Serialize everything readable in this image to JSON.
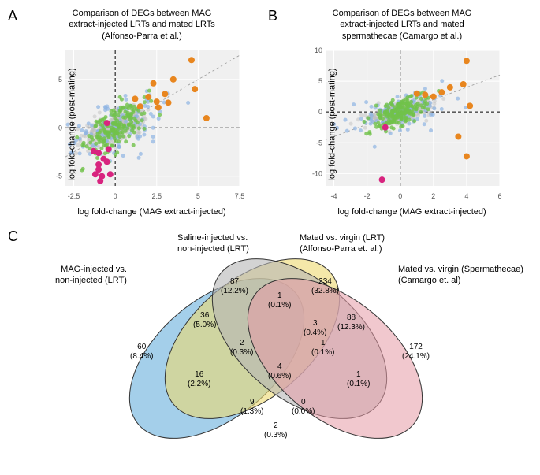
{
  "panelA": {
    "label": "A",
    "title_line1": "Comparison of DEGs between MAG",
    "title_line2": "extract-injected LRTs and mated LRTs",
    "title_line3": "(Alfonso-Parra et al.)",
    "xlabel": "log fold-change (MAG extract-injected)",
    "ylabel": "log fold-change (post-mating)",
    "xlim": [
      -3,
      7.5
    ],
    "xtick_step": 2.5,
    "ylim": [
      -6,
      8
    ],
    "ytick_step": 5,
    "background_color": "#f0f0f0",
    "grid_color": "#ffffff",
    "colors": {
      "gray": "#bfbfbf",
      "blue": "#8db4e2",
      "green": "#70c24a",
      "orange": "#e8861f",
      "magenta": "#d8247f"
    },
    "point_radius": 2.5,
    "orange_radius": 4,
    "magenta_radius": 4
  },
  "panelB": {
    "label": "B",
    "title_line1": "Comparison of DEGs between MAG",
    "title_line2": "extract-injected LRTs and mated",
    "title_line3": "spermathecae (Camargo et al.)",
    "xlabel": "log fold-change (MAG extract-injected)",
    "ylabel": "log fold-change (post-mating)",
    "xlim": [
      -4.5,
      6
    ],
    "xtick_step": 2,
    "ylim": [
      -12,
      10
    ],
    "ytick_step": 5,
    "background_color": "#f0f0f0",
    "grid_color": "#ffffff",
    "colors": {
      "gray": "#bfbfbf",
      "blue": "#8db4e2",
      "green": "#70c24a",
      "orange": "#e8861f",
      "magenta": "#d8247f"
    },
    "point_radius": 2.5,
    "orange_radius": 4,
    "magenta_radius": 4
  },
  "panelC": {
    "label": "C",
    "labels": {
      "set1_1": "MAG-injected vs.",
      "set1_2": "non-injected (LRT)",
      "set2_1": "Saline-injected vs.",
      "set2_2": "non-injected (LRT)",
      "set3_1": "Mated vs. virgin (LRT)",
      "set3_2": "(Alfonso-Parra et. al.)",
      "set4_1": "Mated vs. virgin (Spermathecae)",
      "set4_2": "(Camargo et. al)"
    },
    "colors": {
      "blue": "#5aa8d8",
      "yellow": "#ecd96f",
      "gray": "#b5b5b5",
      "pink": "#e59ba5"
    },
    "regions": {
      "only1": {
        "n": "60",
        "p": "(8.4%)"
      },
      "only2": {
        "n": "87",
        "p": "(12.2%)"
      },
      "only3": {
        "n": "234",
        "p": "(32.8%)"
      },
      "only4": {
        "n": "172",
        "p": "(24.1%)"
      },
      "r12": {
        "n": "36",
        "p": "(5.0%)"
      },
      "r13": {
        "n": "16",
        "p": "(2.2%)"
      },
      "r14": {
        "n": "2",
        "p": "(0.3%)"
      },
      "r23": {
        "n": "1",
        "p": "(0.1%)"
      },
      "r24": {
        "n": "0",
        "p": "(0.0%)"
      },
      "r34": {
        "n": "88",
        "p": "(12.3%)"
      },
      "r123": {
        "n": "2",
        "p": "(0.3%)"
      },
      "r124": {
        "n": "3",
        "p": "(0.4%)"
      },
      "r134": {
        "n": "9",
        "p": "(1.3%)"
      },
      "r234": {
        "n": "1",
        "p": "(0.1%)"
      },
      "rall": {
        "n": "4",
        "p": "(0.6%)"
      },
      "extra": {
        "n": "1",
        "p": "(0.1%)"
      }
    }
  }
}
